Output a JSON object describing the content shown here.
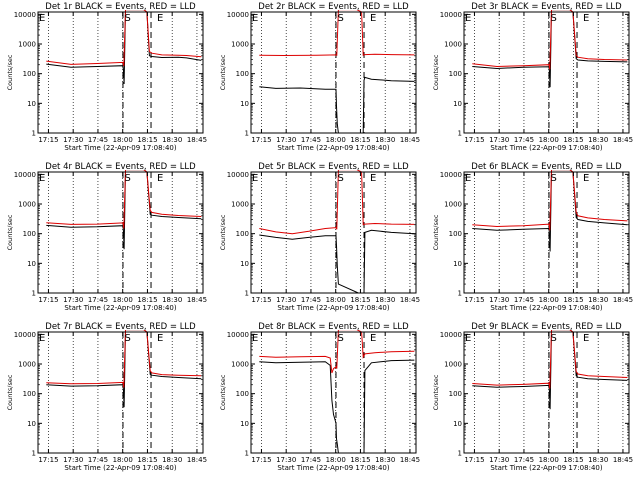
{
  "chart_data": [
    {
      "type": "line",
      "title": "Det 1r BLACK = Events, RED = LLD",
      "xlabel": "Start Time (22-Apr-09 17:08:40)",
      "ylabel": "Counts/sec",
      "xticks": [
        "17:15",
        "17:30",
        "17:45",
        "18:00",
        "18:15",
        "18:30",
        "18:45"
      ],
      "yticks": [
        "1",
        "10",
        "100",
        "1000",
        "10000"
      ],
      "ylim": [
        1,
        12000
      ],
      "yscale": "log",
      "grid": "dotted-vertical",
      "markers": [
        "S",
        "E"
      ],
      "series": [
        {
          "name": "Events",
          "color": "#000000",
          "x": [
            5,
            20,
            36,
            51.5,
            51.8,
            52.2,
            53,
            57,
            64,
            66,
            67.5,
            69,
            75,
            85,
            90,
            99
          ],
          "y": [
            210,
            165,
            175,
            185,
            120,
            45,
            15000,
            15000,
            15000,
            12000,
            400,
            380,
            350,
            360,
            340,
            280
          ]
        },
        {
          "name": "LLD",
          "color": "#dd0000",
          "x": [
            5,
            20,
            36,
            51.5,
            52,
            53,
            57,
            64,
            66,
            67.5,
            69,
            75,
            85,
            90,
            99
          ],
          "y": [
            265,
            205,
            220,
            240,
            180,
            15000,
            15000,
            15000,
            12000,
            560,
            490,
            430,
            420,
            410,
            370
          ]
        }
      ]
    },
    {
      "type": "line",
      "title": "Det 2r BLACK = Events, RED = LLD",
      "xlabel": "Start Time (22-Apr-09 17:08:40)",
      "ylabel": "Counts/sec",
      "xticks": [
        "17:15",
        "17:30",
        "17:45",
        "18:00",
        "18:15",
        "18:30",
        "18:45"
      ],
      "yticks": [
        "1",
        "10",
        "100",
        "1000",
        "10000"
      ],
      "ylim": [
        1,
        12000
      ],
      "yscale": "log",
      "grid": "dotted-vertical",
      "markers": [
        "S",
        "E"
      ],
      "series": [
        {
          "name": "Events",
          "color": "#000000",
          "x": [
            5,
            15,
            30,
            45,
            51.5,
            51.8,
            52.3,
            53,
            65,
            68,
            68.5,
            69,
            73,
            85,
            99
          ],
          "y": [
            36,
            32,
            33,
            30,
            30,
            8,
            2,
            1,
            1,
            1,
            60,
            75,
            65,
            58,
            55
          ]
        },
        {
          "name": "LLD",
          "color": "#dd0000",
          "x": [
            5,
            20,
            40,
            51.5,
            52,
            53,
            57,
            64,
            67,
            68,
            69,
            75,
            85,
            99
          ],
          "y": [
            420,
            410,
            420,
            430,
            420,
            15000,
            15000,
            15000,
            12000,
            420,
            440,
            450,
            440,
            430
          ]
        }
      ]
    },
    {
      "type": "line",
      "title": "Det 3r BLACK = Events, RED = LLD",
      "xlabel": "Start Time (22-Apr-09 17:08:40)",
      "ylabel": "Counts/sec",
      "xticks": [
        "17:15",
        "17:30",
        "17:45",
        "18:00",
        "18:15",
        "18:30",
        "18:45"
      ],
      "yticks": [
        "1",
        "10",
        "100",
        "1000",
        "10000"
      ],
      "ylim": [
        1,
        12000
      ],
      "yscale": "log",
      "grid": "dotted-vertical",
      "markers": [
        "S",
        "E"
      ],
      "series": [
        {
          "name": "Events",
          "color": "#000000",
          "x": [
            5,
            20,
            36,
            51.5,
            51.8,
            52.2,
            53,
            57,
            64,
            66,
            68,
            69,
            75,
            85,
            99
          ],
          "y": [
            175,
            150,
            165,
            170,
            110,
            35,
            15000,
            15000,
            15000,
            12000,
            320,
            290,
            270,
            260,
            250
          ]
        },
        {
          "name": "LLD",
          "color": "#dd0000",
          "x": [
            5,
            20,
            36,
            51.5,
            52,
            53,
            57,
            64,
            66,
            68,
            69,
            75,
            85,
            99
          ],
          "y": [
            215,
            175,
            185,
            200,
            140,
            15000,
            15000,
            15000,
            12000,
            420,
            360,
            320,
            300,
            290
          ]
        }
      ]
    },
    {
      "type": "line",
      "title": "Det 4r BLACK = Events, RED = LLD",
      "xlabel": "Start Time (22-Apr-09 17:08:40)",
      "ylabel": "Counts/sec",
      "xticks": [
        "17:15",
        "17:30",
        "17:45",
        "18:00",
        "18:15",
        "18:30",
        "18:45"
      ],
      "yticks": [
        "1",
        "10",
        "100",
        "1000",
        "10000"
      ],
      "ylim": [
        1,
        12000
      ],
      "yscale": "log",
      "grid": "dotted-vertical",
      "markers": [
        "S",
        "E"
      ],
      "series": [
        {
          "name": "Events",
          "color": "#000000",
          "x": [
            5,
            20,
            36,
            51.5,
            51.8,
            52.2,
            53,
            57,
            64,
            66,
            68,
            69,
            75,
            85,
            99
          ],
          "y": [
            190,
            165,
            170,
            185,
            110,
            30,
            15000,
            15000,
            15000,
            12000,
            450,
            420,
            380,
            350,
            320
          ]
        },
        {
          "name": "LLD",
          "color": "#dd0000",
          "x": [
            5,
            20,
            36,
            51.5,
            52,
            53,
            57,
            64,
            66,
            68,
            69,
            75,
            85,
            99
          ],
          "y": [
            235,
            205,
            210,
            230,
            150,
            15000,
            15000,
            15000,
            12000,
            620,
            520,
            450,
            410,
            380
          ]
        }
      ]
    },
    {
      "type": "line",
      "title": "Det 5r BLACK = Events, RED = LLD",
      "xlabel": "Start Time (22-Apr-09 17:08:40)",
      "ylabel": "Counts/sec",
      "xticks": [
        "17:15",
        "17:30",
        "17:45",
        "18:00",
        "18:15",
        "18:30",
        "18:45"
      ],
      "yticks": [
        "1",
        "10",
        "100",
        "1000",
        "10000"
      ],
      "ylim": [
        1,
        12000
      ],
      "yscale": "log",
      "grid": "dotted-vertical",
      "markers": [
        "S",
        "E"
      ],
      "series": [
        {
          "name": "Events",
          "color": "#000000",
          "x": [
            5,
            15,
            25,
            35,
            45,
            51.5,
            51.8,
            52.3,
            53,
            65,
            68,
            68.5,
            69,
            73,
            85,
            99
          ],
          "y": [
            90,
            75,
            65,
            75,
            85,
            85,
            40,
            8,
            2,
            1,
            1,
            1,
            110,
            130,
            110,
            100
          ]
        },
        {
          "name": "LLD",
          "color": "#dd0000",
          "x": [
            5,
            15,
            25,
            35,
            45,
            51.5,
            52,
            53,
            57,
            64,
            67,
            68,
            69,
            75,
            85,
            99
          ],
          "y": [
            150,
            115,
            100,
            120,
            150,
            160,
            140,
            15000,
            15000,
            15000,
            12000,
            200,
            210,
            220,
            210,
            205
          ]
        }
      ]
    },
    {
      "type": "line",
      "title": "Det 6r BLACK = Events, RED = LLD",
      "xlabel": "Start Time (22-Apr-09 17:08:40)",
      "ylabel": "Counts/sec",
      "xticks": [
        "17:15",
        "17:30",
        "17:45",
        "18:00",
        "18:15",
        "18:30",
        "18:45"
      ],
      "yticks": [
        "1",
        "10",
        "100",
        "1000",
        "10000"
      ],
      "ylim": [
        1,
        12000
      ],
      "yscale": "log",
      "grid": "dotted-vertical",
      "markers": [
        "S",
        "E"
      ],
      "series": [
        {
          "name": "Events",
          "color": "#000000",
          "x": [
            5,
            20,
            36,
            51.5,
            51.8,
            52.2,
            53,
            57,
            64,
            66,
            68,
            69,
            75,
            85,
            99
          ],
          "y": [
            150,
            130,
            140,
            150,
            90,
            25,
            15000,
            15000,
            15000,
            12000,
            350,
            300,
            260,
            230,
            200
          ]
        },
        {
          "name": "LLD",
          "color": "#dd0000",
          "x": [
            5,
            20,
            36,
            51.5,
            52,
            53,
            57,
            64,
            66,
            68,
            69,
            75,
            85,
            99
          ],
          "y": [
            200,
            175,
            185,
            210,
            130,
            15000,
            15000,
            15000,
            12000,
            520,
            400,
            340,
            300,
            270
          ]
        }
      ]
    },
    {
      "type": "line",
      "title": "Det 7r BLACK = Events, RED = LLD",
      "xlabel": "Start Time (22-Apr-09 17:08:40)",
      "ylabel": "Counts/sec",
      "xticks": [
        "17:15",
        "17:30",
        "17:45",
        "18:00",
        "18:15",
        "18:30",
        "18:45"
      ],
      "yticks": [
        "1",
        "10",
        "100",
        "1000",
        "10000"
      ],
      "ylim": [
        1,
        12000
      ],
      "yscale": "log",
      "grid": "dotted-vertical",
      "markers": [
        "S",
        "E"
      ],
      "series": [
        {
          "name": "Events",
          "color": "#000000",
          "x": [
            5,
            20,
            36,
            51.5,
            51.8,
            52.2,
            53,
            57,
            64,
            66,
            68,
            69,
            75,
            85,
            99
          ],
          "y": [
            200,
            180,
            185,
            200,
            120,
            35,
            15000,
            15000,
            15000,
            12000,
            450,
            420,
            380,
            350,
            320
          ]
        },
        {
          "name": "LLD",
          "color": "#dd0000",
          "x": [
            5,
            20,
            36,
            51.5,
            52,
            53,
            57,
            64,
            66,
            68,
            69,
            75,
            85,
            99
          ],
          "y": [
            235,
            215,
            220,
            240,
            160,
            15000,
            15000,
            15000,
            12000,
            600,
            500,
            440,
            420,
            400
          ]
        }
      ]
    },
    {
      "type": "line",
      "title": "Det 8r BLACK = Events, RED = LLD",
      "xlabel": "Start Time (22-Apr-09 17:08:40)",
      "ylabel": "Counts/sec",
      "xticks": [
        "17:15",
        "17:30",
        "17:45",
        "18:00",
        "18:15",
        "18:30",
        "18:45"
      ],
      "yticks": [
        "1",
        "10",
        "100",
        "1000",
        "10000"
      ],
      "ylim": [
        1,
        12000
      ],
      "yscale": "log",
      "grid": "dotted-vertical",
      "markers": [
        "S",
        "E"
      ],
      "series": [
        {
          "name": "Events",
          "color": "#000000",
          "x": [
            5,
            15,
            30,
            45,
            48,
            49,
            50,
            51.5,
            51.8,
            52.3,
            53,
            65,
            68,
            68.5,
            69,
            73,
            85,
            99
          ],
          "y": [
            1200,
            1100,
            1150,
            1200,
            900,
            60,
            20,
            10,
            3,
            2,
            1,
            1,
            1,
            1,
            600,
            1100,
            1300,
            1350
          ]
        },
        {
          "name": "LLD",
          "color": "#dd0000",
          "x": [
            5,
            15,
            30,
            45,
            48,
            49,
            50,
            51.5,
            52,
            53,
            57,
            64,
            67,
            68,
            69,
            75,
            85,
            99
          ],
          "y": [
            1800,
            1700,
            1750,
            1800,
            1600,
            500,
            700,
            800,
            700,
            15000,
            15000,
            15000,
            12000,
            1700,
            2200,
            2400,
            2600,
            2700
          ]
        }
      ]
    },
    {
      "type": "line",
      "title": "Det 9r BLACK = Events, RED = LLD",
      "xlabel": "Start Time (22-Apr-09 17:08:40)",
      "ylabel": "Counts/sec",
      "xticks": [
        "17:15",
        "17:30",
        "17:45",
        "18:00",
        "18:15",
        "18:30",
        "18:45"
      ],
      "yticks": [
        "1",
        "10",
        "100",
        "1000",
        "10000"
      ],
      "ylim": [
        1,
        12000
      ],
      "yscale": "log",
      "grid": "dotted-vertical",
      "markers": [
        "S",
        "E"
      ],
      "series": [
        {
          "name": "Events",
          "color": "#000000",
          "x": [
            5,
            20,
            36,
            51.5,
            51.8,
            52.2,
            53,
            57,
            64,
            66,
            68,
            69,
            75,
            85,
            99
          ],
          "y": [
            185,
            165,
            175,
            190,
            110,
            30,
            15000,
            15000,
            15000,
            12000,
            400,
            360,
            320,
            300,
            280
          ]
        },
        {
          "name": "LLD",
          "color": "#dd0000",
          "x": [
            5,
            20,
            36,
            51.5,
            52,
            53,
            57,
            64,
            66,
            68,
            69,
            75,
            85,
            99
          ],
          "y": [
            220,
            195,
            205,
            225,
            150,
            15000,
            15000,
            15000,
            12000,
            560,
            460,
            400,
            380,
            350
          ]
        }
      ]
    }
  ]
}
